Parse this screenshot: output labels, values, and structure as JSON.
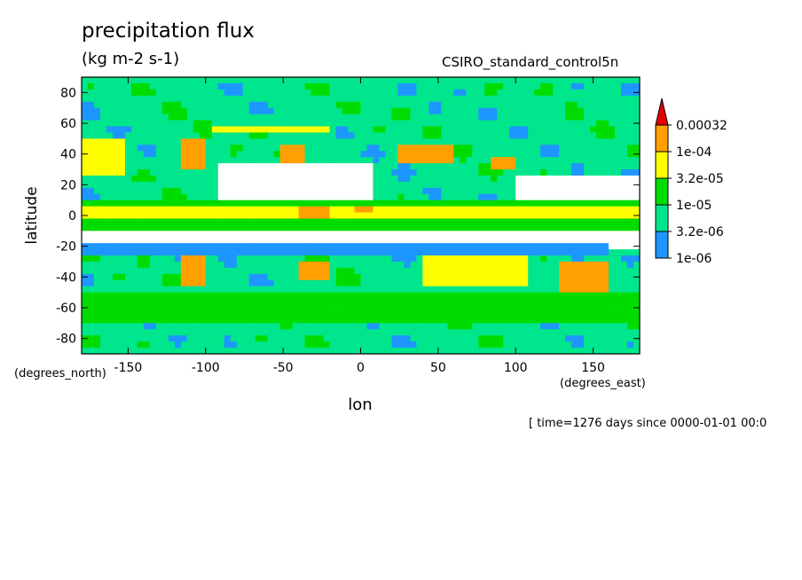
{
  "header": {
    "title": "precipitation flux",
    "units": "(kg m-2 s-1)",
    "dataset": "CSIRO_standard_control5n"
  },
  "footer": {
    "timestamp": "[ time=1276 days since 0000-01-01 00:0"
  },
  "chart_data": {
    "type": "heatmap",
    "title": "precipitation flux",
    "subtitle": "(kg m-2 s-1)",
    "xlabel": "lon",
    "ylabel": "latitude",
    "x_units": "(degrees_east)",
    "y_units": "(degrees_north)",
    "xlim": [
      -180,
      180
    ],
    "ylim": [
      -90,
      90
    ],
    "x_ticks": [
      -150,
      -100,
      -50,
      0,
      50,
      100,
      150
    ],
    "x_tick_labels": [
      "-150",
      "-100",
      "-50",
      "0",
      "50",
      "100",
      "150"
    ],
    "y_ticks": [
      80,
      60,
      40,
      20,
      0,
      -20,
      -40,
      -60,
      -80
    ],
    "y_tick_labels": [
      "80",
      "60",
      "40",
      "20",
      "0",
      "-20",
      "-40",
      "-60",
      "-80"
    ],
    "colorbar": {
      "levels": [
        "1e-06",
        "3.2e-06",
        "1e-05",
        "3.2e-05",
        "1e-04",
        "0.00032"
      ],
      "colors": [
        "#ffffff",
        "#1e96ff",
        "#00e68c",
        "#00dc00",
        "#ffff00",
        "#ffa000",
        "#e60000"
      ]
    },
    "field": {
      "resolution_deg": 4,
      "features": [
        {
          "lon": [
            -180,
            180
          ],
          "lat": [
            -8,
            12
          ],
          "level": 3
        },
        {
          "lon": [
            -180,
            180
          ],
          "lat": [
            -3,
            8
          ],
          "level": 4
        },
        {
          "lon": [
            -40,
            -20
          ],
          "lat": [
            0,
            6
          ],
          "level": 5
        },
        {
          "lon": [
            -5,
            10
          ],
          "lat": [
            2,
            8
          ],
          "level": 5
        },
        {
          "lon": [
            -180,
            -150
          ],
          "lat": [
            28,
            52
          ],
          "level": 4
        },
        {
          "lon": [
            -115,
            -100
          ],
          "lat": [
            30,
            50
          ],
          "level": 5
        },
        {
          "lon": [
            -95,
            -20
          ],
          "lat": [
            55,
            75
          ],
          "level": 4
        },
        {
          "lon": [
            -50,
            -35
          ],
          "lat": [
            30,
            45
          ],
          "level": 5
        },
        {
          "lon": [
            25,
            60
          ],
          "lat": [
            35,
            48
          ],
          "level": 5
        },
        {
          "lon": [
            85,
            100
          ],
          "lat": [
            30,
            40
          ],
          "level": 5
        },
        {
          "lon": [
            -115,
            -100
          ],
          "lat": [
            -45,
            -25
          ],
          "level": 5
        },
        {
          "lon": [
            -40,
            -20
          ],
          "lat": [
            -40,
            -30
          ],
          "level": 5
        },
        {
          "lon": [
            40,
            110
          ],
          "lat": [
            -45,
            -22
          ],
          "level": 4
        },
        {
          "lon": [
            130,
            160
          ],
          "lat": [
            -48,
            -30
          ],
          "level": 5
        },
        {
          "lon": [
            -180,
            180
          ],
          "lat": [
            -70,
            -50
          ],
          "level": 3
        },
        {
          "lon": [
            -180,
            180
          ],
          "lat": [
            60,
            90
          ],
          "level": 2
        },
        {
          "lon": [
            -180,
            180
          ],
          "lat": [
            -90,
            -70
          ],
          "level": 2
        },
        {
          "lon": [
            -90,
            10
          ],
          "lat": [
            12,
            35
          ],
          "level": 0
        },
        {
          "lon": [
            100,
            180
          ],
          "lat": [
            12,
            25
          ],
          "level": 0
        },
        {
          "lon": [
            -180,
            180
          ],
          "lat": [
            -20,
            -10
          ],
          "level": 0
        },
        {
          "lon": [
            -180,
            160
          ],
          "lat": [
            -25,
            -18
          ],
          "level": 1
        }
      ]
    }
  }
}
